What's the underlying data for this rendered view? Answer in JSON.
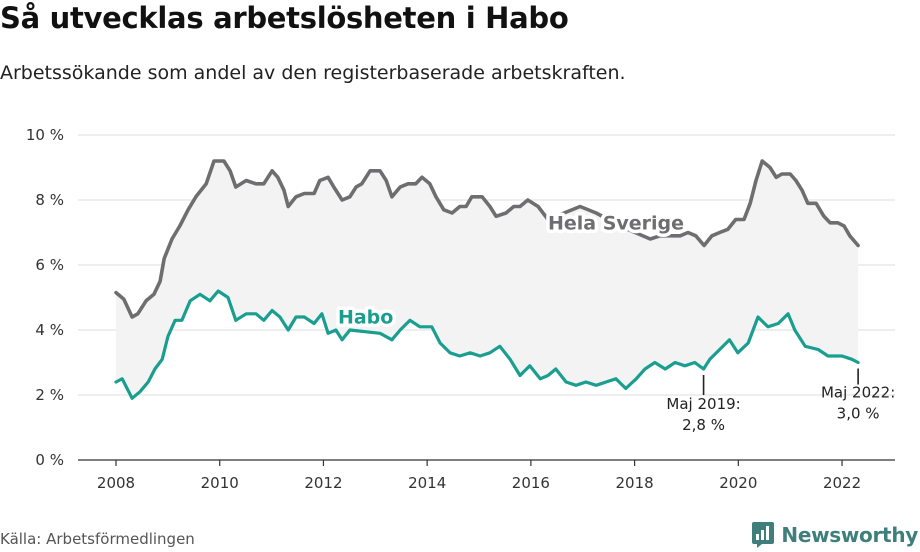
{
  "header": {
    "title": "Så utvecklas arbetslösheten i Habo",
    "subtitle": "Arbetssökande som andel av den registerbaserade arbetskraften."
  },
  "footer": {
    "source": "Källa: Arbetsförmedlingen",
    "logo_text": "Newsworthy",
    "logo_icon": "newsworthy-chart-bubble-icon"
  },
  "colors": {
    "hela_sverige": "#6e6e70",
    "habo": "#1a9e8f",
    "band": "#f3f3f3",
    "grid": "#dddddd",
    "axis": "#333333",
    "logo": "#3e7f7b"
  },
  "chart_data": {
    "type": "line",
    "title": "Så utvecklas arbetslösheten i Habo",
    "subtitle": "Arbetssökande som andel av den registerbaserade arbetskraften.",
    "xlabel": "",
    "ylabel": "",
    "xlim": [
      2008,
      2022.33
    ],
    "ylim": [
      0,
      10
    ],
    "grid": true,
    "shaded_between_series": true,
    "y_ticks": [
      {
        "value": 0,
        "label": "0 %"
      },
      {
        "value": 2,
        "label": "2 %"
      },
      {
        "value": 4,
        "label": "4 %"
      },
      {
        "value": 6,
        "label": "6 %"
      },
      {
        "value": 8,
        "label": "8 %"
      },
      {
        "value": 10,
        "label": "10 %"
      }
    ],
    "x_ticks": [
      {
        "value": 2008,
        "label": "2008"
      },
      {
        "value": 2010,
        "label": "2010"
      },
      {
        "value": 2012,
        "label": "2012"
      },
      {
        "value": 2014,
        "label": "2014"
      },
      {
        "value": 2016,
        "label": "2016"
      },
      {
        "value": 2018,
        "label": "2018"
      },
      {
        "value": 2020,
        "label": "2020"
      },
      {
        "value": 2022,
        "label": "2022"
      }
    ],
    "series": [
      {
        "name": "Hela Sverige",
        "color": "#6e6e70",
        "label_anchor": {
          "x": 2016.33,
          "y": 7.1
        },
        "x": [
          2008.0,
          2008.15,
          2008.31,
          2008.42,
          2008.58,
          2008.73,
          2008.85,
          2008.93,
          2009.08,
          2009.23,
          2009.39,
          2009.54,
          2009.74,
          2009.89,
          2010.08,
          2010.2,
          2010.31,
          2010.51,
          2010.7,
          2010.85,
          2011.01,
          2011.12,
          2011.24,
          2011.32,
          2011.47,
          2011.63,
          2011.82,
          2011.93,
          2012.09,
          2012.2,
          2012.36,
          2012.51,
          2012.63,
          2012.74,
          2012.9,
          2013.09,
          2013.21,
          2013.32,
          2013.48,
          2013.63,
          2013.78,
          2013.9,
          2014.05,
          2014.17,
          2014.32,
          2014.48,
          2014.63,
          2014.75,
          2014.86,
          2015.06,
          2015.21,
          2015.33,
          2015.52,
          2015.67,
          2015.79,
          2015.94,
          2016.14,
          2016.33,
          2016.95,
          2017.26,
          2017.72,
          2018.3,
          2018.49,
          2018.68,
          2018.88,
          2019.03,
          2019.18,
          2019.34,
          2019.49,
          2019.64,
          2019.8,
          2019.95,
          2020.11,
          2020.23,
          2020.34,
          2020.46,
          2020.61,
          2020.73,
          2020.84,
          2021.0,
          2021.11,
          2021.23,
          2021.34,
          2021.5,
          2021.65,
          2021.77,
          2021.92,
          2022.04,
          2022.15,
          2022.31
        ],
        "values": [
          5.15,
          4.95,
          4.4,
          4.5,
          4.9,
          5.1,
          5.5,
          6.2,
          6.8,
          7.2,
          7.7,
          8.1,
          8.5,
          9.2,
          9.2,
          8.9,
          8.4,
          8.6,
          8.5,
          8.5,
          8.9,
          8.7,
          8.3,
          7.8,
          8.1,
          8.2,
          8.2,
          8.6,
          8.7,
          8.4,
          8.0,
          8.1,
          8.4,
          8.5,
          8.9,
          8.9,
          8.6,
          8.1,
          8.4,
          8.5,
          8.5,
          8.7,
          8.5,
          8.1,
          7.7,
          7.6,
          7.8,
          7.8,
          8.1,
          8.1,
          7.8,
          7.5,
          7.6,
          7.8,
          7.8,
          8.0,
          7.8,
          7.4,
          7.8,
          7.6,
          7.2,
          6.8,
          6.9,
          6.9,
          6.9,
          7.0,
          6.9,
          6.6,
          6.9,
          7.0,
          7.1,
          7.4,
          7.4,
          7.9,
          8.6,
          9.2,
          9.0,
          8.7,
          8.8,
          8.8,
          8.6,
          8.3,
          7.9,
          7.9,
          7.5,
          7.3,
          7.3,
          7.2,
          6.9,
          6.6
        ]
      },
      {
        "name": "Habo",
        "color": "#1a9e8f",
        "label_anchor": {
          "x": 2012.28,
          "y": 4.2
        },
        "x": [
          2008.0,
          2008.12,
          2008.31,
          2008.46,
          2008.62,
          2008.75,
          2008.89,
          2009.0,
          2009.14,
          2009.27,
          2009.43,
          2009.62,
          2009.81,
          2009.97,
          2010.16,
          2010.31,
          2010.51,
          2010.7,
          2010.85,
          2011.01,
          2011.16,
          2011.32,
          2011.47,
          2011.63,
          2011.82,
          2011.97,
          2012.09,
          2012.24,
          2012.36,
          2012.51,
          2013.09,
          2013.32,
          2013.48,
          2013.67,
          2013.86,
          2014.09,
          2014.25,
          2014.44,
          2014.63,
          2014.83,
          2015.02,
          2015.21,
          2015.4,
          2015.6,
          2015.79,
          2015.98,
          2016.18,
          2016.33,
          2016.48,
          2016.68,
          2016.87,
          2017.06,
          2017.26,
          2017.45,
          2017.64,
          2017.83,
          2018.03,
          2018.2,
          2018.39,
          2018.59,
          2018.78,
          2018.97,
          2019.16,
          2019.33,
          2019.45,
          2019.64,
          2019.83,
          2019.99,
          2020.19,
          2020.38,
          2020.57,
          2020.77,
          2020.96,
          2021.09,
          2021.29,
          2021.54,
          2021.73,
          2022.0,
          2022.19,
          2022.31
        ],
        "values": [
          2.4,
          2.5,
          1.9,
          2.1,
          2.4,
          2.8,
          3.1,
          3.8,
          4.3,
          4.3,
          4.9,
          5.1,
          4.9,
          5.2,
          5.0,
          4.3,
          4.5,
          4.5,
          4.3,
          4.6,
          4.4,
          4.0,
          4.4,
          4.4,
          4.2,
          4.5,
          3.9,
          4.0,
          3.7,
          4.0,
          3.9,
          3.7,
          4.0,
          4.3,
          4.1,
          4.1,
          3.6,
          3.3,
          3.2,
          3.3,
          3.2,
          3.3,
          3.5,
          3.1,
          2.6,
          2.9,
          2.5,
          2.6,
          2.8,
          2.4,
          2.3,
          2.4,
          2.3,
          2.4,
          2.5,
          2.2,
          2.5,
          2.8,
          3.0,
          2.8,
          3.0,
          2.9,
          3.0,
          2.8,
          3.1,
          3.4,
          3.7,
          3.3,
          3.6,
          4.4,
          4.1,
          4.2,
          4.5,
          4.0,
          3.5,
          3.4,
          3.2,
          3.2,
          3.1,
          3.0
        ]
      }
    ],
    "annotations": [
      {
        "x": 2019.33,
        "y": 2.8,
        "lines": [
          "Maj 2019:",
          "2,8 %"
        ]
      },
      {
        "x": 2022.31,
        "y": 3.0,
        "lines": [
          "Maj 2022:",
          "3,0 %"
        ]
      }
    ]
  }
}
